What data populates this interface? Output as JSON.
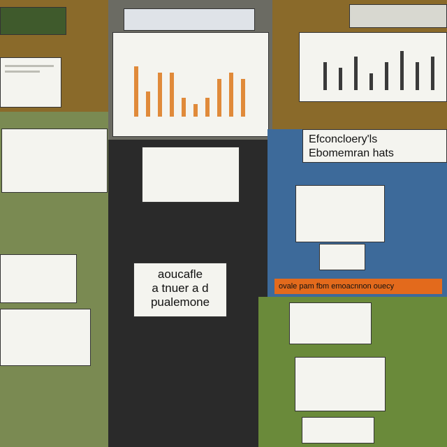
{
  "colors": {
    "orange_bar": "#e08a3a",
    "dark_bar": "#3a3a3a",
    "blue_bar": "#2b4f8e",
    "accent_orange": "#e36a1c",
    "yellow_icon": "#e6d23a"
  },
  "labels": {
    "collage_heading_1": "Efconcloery'ls",
    "collage_heading_2": "Ebomemran hats",
    "center_sign_1": "aoucafle",
    "center_sign_2": "a tnuer a d",
    "center_sign_3": "pualemone",
    "orange_banner": "ovale pam fbm emoacnnon ouecy"
  },
  "chart_data": [
    {
      "type": "bar",
      "values": [
        8,
        4,
        7,
        7,
        3,
        2,
        3,
        6,
        7,
        6
      ]
    },
    {
      "type": "bar",
      "values": [
        5,
        4,
        6,
        3,
        5,
        7,
        5,
        6
      ]
    }
  ]
}
